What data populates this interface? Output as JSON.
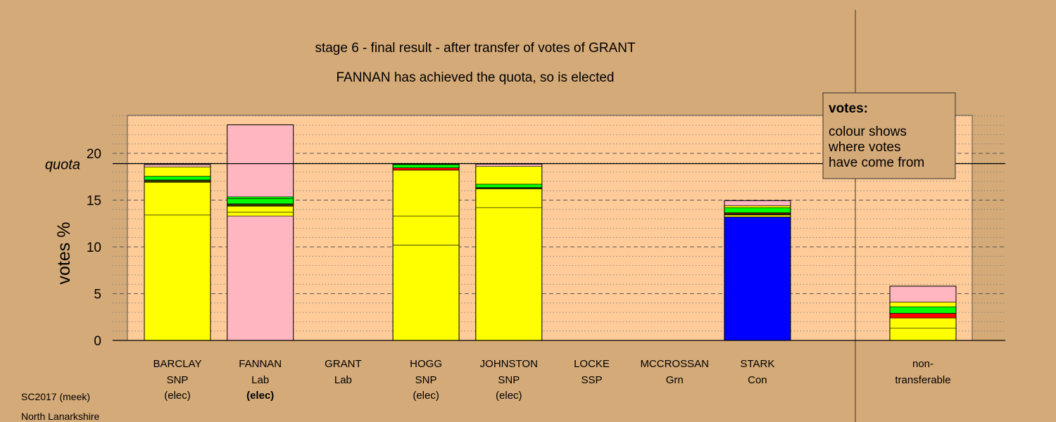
{
  "chart_data": {
    "type": "bar",
    "stacked": true,
    "title": "stage 6 - final result - after transfer of votes of GRANT",
    "subtitle": "FANNAN has achieved the quota, so is elected",
    "ylabel": "votes %",
    "ylim": [
      0,
      24
    ],
    "yticks": [
      0,
      5,
      10,
      15,
      20
    ],
    "quota": 18.9,
    "quota_label": "quota",
    "grid": true,
    "legend": {
      "position": "top-right",
      "title": "votes:",
      "lines": [
        "colour shows",
        "where votes",
        "have come from"
      ]
    },
    "colors": {
      "SNP": "#ffff00",
      "Lab": "#ffb6c1",
      "Con": "#0000ff",
      "Grn": "#00ff00",
      "SSP": "#ff0000",
      "dark": "#333300"
    },
    "candidates": [
      {
        "name": "BARCLAY",
        "party": "SNP",
        "status": "(elec)",
        "status_bold": false,
        "segments": [
          {
            "from": "SNP",
            "value": 13.4
          },
          {
            "from": "SNP",
            "value": 3.5
          },
          {
            "from": "dark",
            "value": 0.25
          },
          {
            "from": "Grn",
            "value": 0.4
          },
          {
            "from": "SNP",
            "value": 1.0
          },
          {
            "from": "Lab",
            "value": 0.25
          }
        ]
      },
      {
        "name": "FANNAN",
        "party": "Lab",
        "status": "(elec)",
        "status_bold": true,
        "segments": [
          {
            "from": "Lab",
            "value": 13.3
          },
          {
            "from": "SNP",
            "value": 0.4
          },
          {
            "from": "SNP",
            "value": 0.65
          },
          {
            "from": "dark",
            "value": 0.25
          },
          {
            "from": "Grn",
            "value": 0.55
          },
          {
            "from": "Grn",
            "value": 0.2
          },
          {
            "from": "Lab",
            "value": 7.7
          }
        ]
      },
      {
        "name": "GRANT",
        "party": "Lab",
        "status": "",
        "status_bold": false,
        "segments": []
      },
      {
        "name": "HOGG",
        "party": "SNP",
        "status": "(elec)",
        "status_bold": false,
        "segments": [
          {
            "from": "SNP",
            "value": 10.2
          },
          {
            "from": "SNP",
            "value": 3.1
          },
          {
            "from": "SNP",
            "value": 4.9
          },
          {
            "from": "SSP",
            "value": 0.25
          },
          {
            "from": "Grn",
            "value": 0.35
          },
          {
            "from": "dark",
            "value": 0.1
          }
        ]
      },
      {
        "name": "JOHNSTON",
        "party": "SNP",
        "status": "(elec)",
        "status_bold": false,
        "segments": [
          {
            "from": "SNP",
            "value": 14.2
          },
          {
            "from": "SNP",
            "value": 2.0
          },
          {
            "from": "dark",
            "value": 0.15
          },
          {
            "from": "Grn",
            "value": 0.35
          },
          {
            "from": "SNP",
            "value": 1.9
          },
          {
            "from": "Lab",
            "value": 0.25
          }
        ]
      },
      {
        "name": "LOCKE",
        "party": "SSP",
        "status": "",
        "status_bold": false,
        "segments": []
      },
      {
        "name": "MCCROSSAN",
        "party": "Grn",
        "status": "",
        "status_bold": false,
        "segments": []
      },
      {
        "name": "STARK",
        "party": "Con",
        "status": "",
        "status_bold": false,
        "segments": [
          {
            "from": "Con",
            "value": 13.2
          },
          {
            "from": "SNP",
            "value": 0.2
          },
          {
            "from": "dark",
            "value": 0.15
          },
          {
            "from": "SSP",
            "value": 0.1
          },
          {
            "from": "Grn",
            "value": 0.55
          },
          {
            "from": "SNP",
            "value": 0.2
          },
          {
            "from": "Lab",
            "value": 0.55
          }
        ]
      }
    ],
    "nontransferable": {
      "label_line1": "non-",
      "label_line2": "transferable",
      "segments": [
        {
          "from": "SNP",
          "value": 1.3
        },
        {
          "from": "SNP",
          "value": 1.1
        },
        {
          "from": "SSP",
          "value": 0.5
        },
        {
          "from": "Grn",
          "value": 0.7
        },
        {
          "from": "SNP",
          "value": 0.5
        },
        {
          "from": "Lab",
          "value": 1.7
        }
      ]
    }
  },
  "footer": {
    "line1": "SC2017 (meek)",
    "line2": "North Lanarkshire"
  }
}
